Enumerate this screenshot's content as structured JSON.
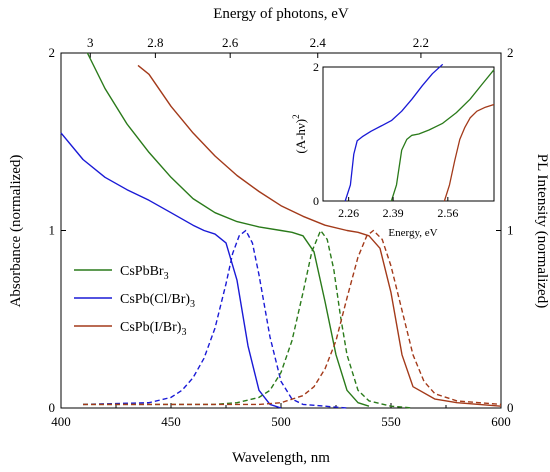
{
  "chart_data": {
    "type": "line",
    "xlabel": "Wavelength, nm",
    "x2label": "Energy of photons, eV",
    "ylabel": "Absorbance (normalized)",
    "y2label": "PL Intensity (normalized)",
    "xlim": [
      400,
      600
    ],
    "ylim": [
      0,
      2
    ],
    "y2lim": [
      0,
      2
    ],
    "x_ticks": [
      "400",
      "450",
      "500",
      "550",
      "600"
    ],
    "y_ticks": [
      "0",
      "1",
      "2"
    ],
    "y2_ticks": [
      "0",
      "1",
      "2"
    ],
    "x2_ticks": [
      {
        "label": "3",
        "wavelength": 413.3
      },
      {
        "label": "2.8",
        "wavelength": 442.9
      },
      {
        "label": "2.6",
        "wavelength": 476.9
      },
      {
        "label": "2.4",
        "wavelength": 516.7
      },
      {
        "label": "2.2",
        "wavelength": 563.6
      }
    ],
    "legend": {
      "position": "left-middle",
      "entries": [
        {
          "main": "CsPbBr",
          "sub": "3",
          "color": "#2a7a1a"
        },
        {
          "main": "CsPb(Cl/Br)",
          "sub": "3",
          "color": "#1a1ad6"
        },
        {
          "main": "CsPb(I/Br)",
          "sub": "3",
          "color": "#a33a1a"
        }
      ]
    },
    "series": [
      {
        "kind": "absorbance",
        "color": "#2a7a1a",
        "dash": false,
        "x": [
          412,
          420,
          430,
          440,
          450,
          460,
          470,
          480,
          490,
          500,
          505,
          510,
          515,
          520,
          525,
          530,
          535,
          540
        ],
        "y": [
          2.0,
          1.8,
          1.6,
          1.44,
          1.3,
          1.18,
          1.1,
          1.05,
          1.02,
          1.0,
          0.99,
          0.97,
          0.88,
          0.6,
          0.3,
          0.1,
          0.03,
          0.01
        ]
      },
      {
        "kind": "absorbance",
        "color": "#1a1ad6",
        "dash": false,
        "x": [
          400,
          410,
          420,
          430,
          440,
          450,
          460,
          465,
          470,
          475,
          480,
          485,
          490,
          495,
          500
        ],
        "y": [
          1.55,
          1.4,
          1.3,
          1.23,
          1.17,
          1.1,
          1.03,
          1.0,
          0.98,
          0.93,
          0.72,
          0.35,
          0.1,
          0.02,
          0.0
        ]
      },
      {
        "kind": "absorbance",
        "color": "#a33a1a",
        "dash": false,
        "x": [
          435,
          440,
          450,
          460,
          470,
          480,
          490,
          500,
          510,
          520,
          530,
          535,
          540,
          545,
          550,
          555,
          560,
          570,
          580,
          590,
          600
        ],
        "y": [
          1.93,
          1.88,
          1.7,
          1.55,
          1.42,
          1.31,
          1.22,
          1.14,
          1.08,
          1.03,
          1.0,
          0.99,
          0.97,
          0.9,
          0.65,
          0.3,
          0.12,
          0.05,
          0.03,
          0.02,
          0.01
        ]
      },
      {
        "kind": "pl",
        "color": "#1a1ad6",
        "dash": true,
        "x": [
          410,
          440,
          450,
          455,
          460,
          465,
          470,
          475,
          478,
          481,
          484,
          487,
          490,
          495,
          500,
          505,
          510,
          520,
          530
        ],
        "y": [
          0.02,
          0.03,
          0.06,
          0.1,
          0.17,
          0.28,
          0.45,
          0.7,
          0.87,
          0.97,
          1.0,
          0.93,
          0.75,
          0.4,
          0.15,
          0.05,
          0.02,
          0.01,
          0.0
        ]
      },
      {
        "kind": "pl",
        "color": "#2a7a1a",
        "dash": true,
        "x": [
          410,
          470,
          480,
          490,
          495,
          500,
          505,
          510,
          514,
          518,
          521,
          524,
          527,
          530,
          535,
          540,
          550,
          560
        ],
        "y": [
          0.02,
          0.02,
          0.03,
          0.06,
          0.1,
          0.2,
          0.38,
          0.65,
          0.88,
          1.0,
          0.95,
          0.78,
          0.52,
          0.3,
          0.1,
          0.04,
          0.01,
          0.0
        ]
      },
      {
        "kind": "pl",
        "color": "#a33a1a",
        "dash": true,
        "x": [
          410,
          490,
          500,
          510,
          515,
          520,
          525,
          530,
          535,
          539,
          542,
          546,
          550,
          555,
          560,
          565,
          570,
          580,
          590,
          600
        ],
        "y": [
          0.02,
          0.02,
          0.03,
          0.07,
          0.12,
          0.22,
          0.38,
          0.62,
          0.85,
          0.97,
          1.0,
          0.95,
          0.8,
          0.55,
          0.3,
          0.15,
          0.08,
          0.04,
          0.03,
          0.02
        ]
      }
    ],
    "inset": {
      "ylabel_main": "(A-hν)",
      "ylabel_sup": "2",
      "xlabel": "Energy, eV",
      "y_ticks": [
        "0",
        "2"
      ],
      "x_ticks": [
        {
          "label": "2.26",
          "pos": 0.15
        },
        {
          "label": "2.39",
          "pos": 0.41
        },
        {
          "label": "2.56",
          "pos": 0.73
        }
      ],
      "series": [
        {
          "color": "#1a1ad6",
          "x": [
            0.13,
            0.16,
            0.18,
            0.2,
            0.23,
            0.28,
            0.34,
            0.4,
            0.46,
            0.52,
            0.58,
            0.64,
            0.7
          ],
          "y": [
            0.0,
            0.12,
            0.35,
            0.45,
            0.48,
            0.52,
            0.56,
            0.6,
            0.67,
            0.76,
            0.86,
            0.95,
            1.02
          ]
        },
        {
          "color": "#2a7a1a",
          "x": [
            0.4,
            0.43,
            0.46,
            0.49,
            0.52,
            0.56,
            0.62,
            0.7,
            0.78,
            0.86,
            0.93,
            1.0
          ],
          "y": [
            0.0,
            0.12,
            0.38,
            0.46,
            0.49,
            0.5,
            0.53,
            0.58,
            0.66,
            0.76,
            0.87,
            0.98
          ]
        },
        {
          "color": "#a33a1a",
          "x": [
            0.71,
            0.74,
            0.77,
            0.8,
            0.83,
            0.86,
            0.9,
            0.95,
            1.0
          ],
          "y": [
            0.0,
            0.12,
            0.3,
            0.46,
            0.55,
            0.62,
            0.67,
            0.7,
            0.72
          ]
        }
      ]
    }
  }
}
